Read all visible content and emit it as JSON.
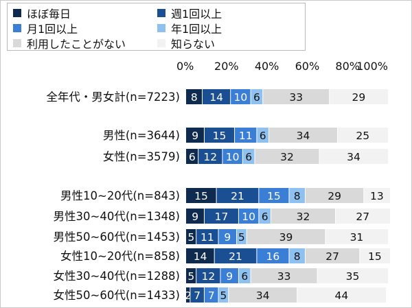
{
  "chart_data": {
    "type": "bar",
    "orientation": "horizontal",
    "stacked": "percent",
    "xlim": [
      0,
      100
    ],
    "x_ticks": [
      "0%",
      "20%",
      "40%",
      "60%",
      "80%",
      "100%"
    ],
    "grid": false,
    "legend_position": "top-left",
    "groups": [
      [
        "全年代・男女計(n=7223)"
      ],
      [
        "男性(n=3644)",
        "女性(n=3579)"
      ],
      [
        "男性10~20代(n=843)",
        "男性30~40代(n=1348)",
        "男性50~60代(n=1453)",
        "女性10~20代(n=858)",
        "女性30~40代(n=1288)",
        "女性50~60代(n=1433)"
      ]
    ],
    "categories": [
      "全年代・男女計(n=7223)",
      "男性(n=3644)",
      "女性(n=3579)",
      "男性10~20代(n=843)",
      "男性30~40代(n=1348)",
      "男性50~60代(n=1453)",
      "女性10~20代(n=858)",
      "女性30~40代(n=1288)",
      "女性50~60代(n=1433)"
    ],
    "series": [
      {
        "name": "ほぼ毎日",
        "color": "#0e2a4f",
        "label_color": "#ffffff",
        "values": [
          8,
          9,
          6,
          15,
          9,
          5,
          14,
          5,
          2
        ]
      },
      {
        "name": "週1回以上",
        "color": "#1b4f93",
        "label_color": "#ffffff",
        "values": [
          14,
          15,
          12,
          21,
          17,
          11,
          21,
          12,
          7
        ]
      },
      {
        "name": "月1回以上",
        "color": "#3a7fd5",
        "label_color": "#ffffff",
        "values": [
          10,
          11,
          10,
          15,
          10,
          9,
          16,
          9,
          7
        ]
      },
      {
        "name": "年1回以上",
        "color": "#8fc1f0",
        "label_color": "#111111",
        "values": [
          6,
          6,
          6,
          8,
          6,
          5,
          8,
          6,
          5
        ]
      },
      {
        "name": "利用したことがない",
        "color": "#d9d9d9",
        "label_color": "#111111",
        "values": [
          33,
          34,
          32,
          29,
          32,
          39,
          27,
          33,
          34
        ]
      },
      {
        "name": "知らない",
        "color": "#f2f2f2",
        "label_color": "#111111",
        "values": [
          29,
          25,
          34,
          13,
          27,
          31,
          15,
          35,
          44
        ]
      }
    ]
  }
}
